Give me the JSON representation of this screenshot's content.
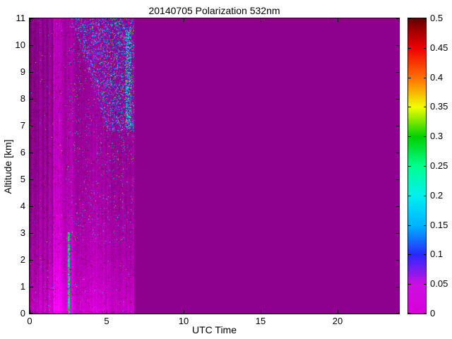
{
  "chart_data": {
    "type": "heatmap",
    "title": "20140705 Polarization 532nm",
    "xlabel": "UTC Time",
    "ylabel": "Altitude [km]",
    "xlim": [
      0,
      24
    ],
    "ylim": [
      0,
      11
    ],
    "xticks": [
      0,
      5,
      10,
      15,
      20
    ],
    "xtick_labels": [
      "0",
      "5",
      "10",
      "15",
      "20"
    ],
    "yticks": [
      0,
      1,
      2,
      3,
      4,
      5,
      6,
      7,
      8,
      9,
      10,
      11
    ],
    "ytick_labels": [
      "0",
      "1",
      "2",
      "3",
      "4",
      "5",
      "6",
      "7",
      "8",
      "9",
      "10",
      "11"
    ],
    "grid": false,
    "colorbar": {
      "range": [
        0,
        0.5
      ],
      "tick_values": [
        0,
        0.05,
        0.1,
        0.15,
        0.2,
        0.25,
        0.3,
        0.35,
        0.4,
        0.45,
        0.5
      ],
      "tick_labels": [
        "0",
        "0.05",
        "0.1",
        "0.15",
        "0.2",
        "0.25",
        "0.3",
        "0.35",
        "0.4",
        "0.45",
        "0.5"
      ],
      "stops": [
        [
          0.0,
          "#D800D8"
        ],
        [
          0.1,
          "#CC10E0"
        ],
        [
          0.2,
          "#2828FF"
        ],
        [
          0.3,
          "#00B4FF"
        ],
        [
          0.4,
          "#00F0F0"
        ],
        [
          0.5,
          "#00FF90"
        ],
        [
          0.6,
          "#00D000"
        ],
        [
          0.7,
          "#F0FF00"
        ],
        [
          0.8,
          "#FF7000"
        ],
        [
          0.9,
          "#F00000"
        ],
        [
          0.96,
          "#A00000"
        ],
        [
          1.0,
          "#600000"
        ]
      ]
    },
    "texture": {
      "seed": 20140705,
      "background_color": "#8E008E",
      "noisy_region_utc_max": 6.78,
      "base_lightness": {
        "bg": 28,
        "amp": 12,
        "alt_scale": 3.0
      },
      "pixel_jitter": 8,
      "bright_stripes": [
        {
          "utc": 1.75,
          "amp": 12,
          "sigma": 0.35
        },
        {
          "utc": 2.62,
          "amp": 7,
          "sigma": 0.15
        },
        {
          "utc": 3.9,
          "amp": 3.5,
          "sigma": 0.7
        }
      ],
      "dark_striation_utc_max": 1.9,
      "green_line": {
        "utc_min": 2.47,
        "utc_max": 2.61,
        "alt_max": 3.05,
        "density": 0.8
      },
      "speckle_wedge": {
        "utc_at_top": 2.7,
        "utc_per_km": 0.55,
        "alt_min": 6.8,
        "density": 0.2
      },
      "blue_column": {
        "utc_min": 6.22,
        "utc_max": 6.58,
        "alt_min": 6.9,
        "alt_max": 10.6,
        "density": 0.28
      },
      "sparse_speckle": {
        "base": 0.004,
        "utc_min": 2.4,
        "alt_min": 2.6,
        "gain": 0.07
      },
      "maroon_dots": {
        "p": 0.01,
        "extra_left_p": 0.008,
        "extra_left_utc_max": 2.6
      },
      "bottom_band": {
        "alt_max": 0.12,
        "p": 0.35,
        "darken": 10
      }
    }
  }
}
